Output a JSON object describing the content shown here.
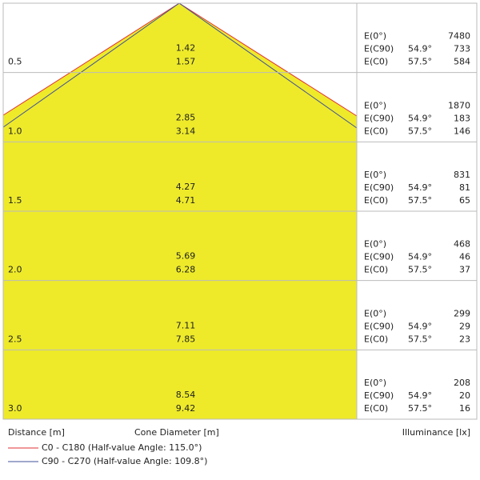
{
  "rows": [
    {
      "distance": "0.5",
      "diameters": [
        1.42,
        1.57
      ],
      "illuminance": [
        {
          "label": "E(0°)",
          "value": 7480
        },
        {
          "label": "E(C90)",
          "angle": "54.9°",
          "value": 733
        },
        {
          "label": "E(C0)",
          "angle": "57.5°",
          "value": 584
        }
      ]
    },
    {
      "distance": "1.0",
      "diameters": [
        2.85,
        3.14
      ],
      "illuminance": [
        {
          "label": "E(0°)",
          "value": 1870
        },
        {
          "label": "E(C90)",
          "angle": "54.9°",
          "value": 183
        },
        {
          "label": "E(C0)",
          "angle": "57.5°",
          "value": 146
        }
      ]
    },
    {
      "distance": "1.5",
      "diameters": [
        4.27,
        4.71
      ],
      "illuminance": [
        {
          "label": "E(0°)",
          "value": 831
        },
        {
          "label": "E(C90)",
          "angle": "54.9°",
          "value": 81
        },
        {
          "label": "E(C0)",
          "angle": "57.5°",
          "value": 65
        }
      ]
    },
    {
      "distance": "2.0",
      "diameters": [
        5.69,
        6.28
      ],
      "illuminance": [
        {
          "label": "E(0°)",
          "value": 468
        },
        {
          "label": "E(C90)",
          "angle": "54.9°",
          "value": 46
        },
        {
          "label": "E(C0)",
          "angle": "57.5°",
          "value": 37
        }
      ]
    },
    {
      "distance": "2.5",
      "diameters": [
        7.11,
        7.85
      ],
      "illuminance": [
        {
          "label": "E(0°)",
          "value": 299
        },
        {
          "label": "E(C90)",
          "angle": "54.9°",
          "value": 29
        },
        {
          "label": "E(C0)",
          "angle": "57.5°",
          "value": 23
        }
      ]
    },
    {
      "distance": "3.0",
      "diameters": [
        8.54,
        9.42
      ],
      "illuminance": [
        {
          "label": "E(0°)",
          "value": 208
        },
        {
          "label": "E(C90)",
          "angle": "54.9°",
          "value": 20
        },
        {
          "label": "E(C0)",
          "angle": "57.5°",
          "value": 16
        }
      ]
    }
  ],
  "footer": {
    "distance": "Distance [m]",
    "diameter": "Cone Diameter [m]",
    "illuminance": "Illuminance [lx]"
  },
  "legend": [
    {
      "label": "C0 - C180 (Half-value Angle: 115.0°)",
      "color": "#e03030"
    },
    {
      "label": "C90 - C270 (Half-value Angle: 109.8°)",
      "color": "#40509a"
    }
  ]
}
